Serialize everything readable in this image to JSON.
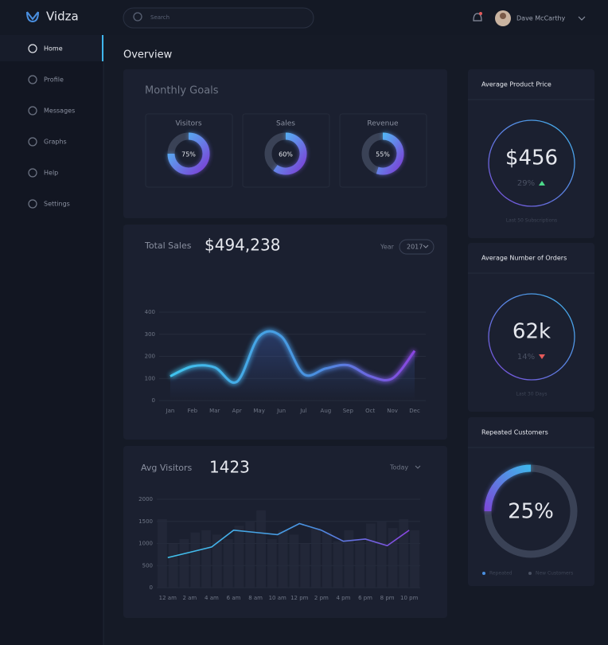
{
  "header": {
    "brand": "Vidza",
    "search_placeholder": "Search",
    "user_name": "Dave McCarthy"
  },
  "sidebar": {
    "items": [
      "Home",
      "Profile",
      "Messages",
      "Graphs",
      "Help",
      "Settings"
    ],
    "active": 0
  },
  "page_title": "Overview",
  "monthly_goals": {
    "title": "Monthly Goals",
    "goals": [
      {
        "label": "Visitors",
        "value": 75,
        "value_label": "75%"
      },
      {
        "label": "Sales",
        "value": 60,
        "value_label": "60%"
      },
      {
        "label": "Revenue",
        "value": 55,
        "value_label": "55%"
      }
    ]
  },
  "total_sales": {
    "title": "Total Sales",
    "total": "$494,238",
    "period_label": "Year",
    "period": "2017",
    "chart": {
      "type": "line",
      "categories": [
        "Jan",
        "Feb",
        "Mar",
        "Apr",
        "May",
        "Jun",
        "Jul",
        "Aug",
        "Sep",
        "Oct",
        "Nov",
        "Dec"
      ],
      "values": [
        110,
        155,
        150,
        85,
        290,
        290,
        120,
        145,
        160,
        110,
        100,
        225
      ],
      "ylim": [
        0,
        400
      ],
      "yticks": [
        0,
        100,
        200,
        300,
        400
      ],
      "grid": true
    }
  },
  "avg_visitors": {
    "title": "Avg Visitors",
    "total": "1423",
    "period": "Today",
    "chart": {
      "type": "line",
      "categories": [
        "12 am",
        "2 am",
        "4 am",
        "6 am",
        "8 am",
        "10 am",
        "12 pm",
        "2 pm",
        "4 pm",
        "6 pm",
        "8 pm",
        "10 pm"
      ],
      "values": [
        680,
        800,
        920,
        1300,
        1250,
        1200,
        1450,
        1300,
        1050,
        1100,
        950,
        1300
      ],
      "bar_values": [
        1550,
        1000,
        1100,
        1250,
        1300,
        1200,
        1100,
        1400,
        1500,
        1750,
        1100,
        1300,
        1200,
        1000,
        1350,
        1250,
        1050,
        1300,
        1050,
        1450,
        1500,
        1350,
        1550,
        1300
      ],
      "ylim": [
        0,
        2000
      ],
      "yticks": [
        0,
        500,
        1000,
        1500,
        2000
      ],
      "grid": true
    }
  },
  "stats": [
    {
      "title": "Average Product Price",
      "value": "$456",
      "change": "29%",
      "trend": "up",
      "footnote": "Last 50 Subscriptions"
    },
    {
      "title": "Average Number of Orders",
      "value": "62k",
      "change": "14%",
      "trend": "down",
      "footnote": "Last 30 Days"
    }
  ],
  "repeated_customers": {
    "title": "Repeated Customers",
    "value": 25,
    "value_label": "25%",
    "legend": [
      "Repeated",
      "New Customers"
    ]
  }
}
